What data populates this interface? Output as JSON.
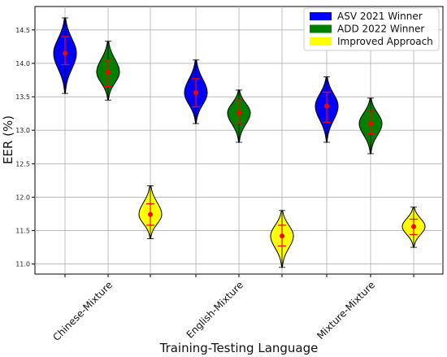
{
  "chart_data": {
    "type": "violin",
    "xlabel": "Training-Testing Language",
    "ylabel": "EER (%)",
    "ylim": [
      10.85,
      14.85
    ],
    "yticks": [
      11.0,
      11.5,
      12.0,
      12.5,
      13.0,
      13.5,
      14.0,
      14.5
    ],
    "ytick_labels": [
      "11.0",
      "11.5",
      "12.0",
      "12.5",
      "13.0",
      "13.5",
      "14.0",
      "14.5"
    ],
    "categories": [
      "Chinese-Mixture",
      "English-Mixture",
      "Mixture-Mixture"
    ],
    "grid": true,
    "legend_position": "top-right",
    "series": [
      {
        "name": "ASV 2021 Winner",
        "color": "#0000ff",
        "violins": [
          {
            "min": 13.55,
            "max": 14.68,
            "mean": 14.15,
            "err_low": 13.98,
            "err_high": 14.4
          },
          {
            "min": 13.1,
            "max": 14.05,
            "mean": 13.56,
            "err_low": 13.35,
            "err_high": 13.77
          },
          {
            "min": 12.82,
            "max": 13.8,
            "mean": 13.36,
            "err_low": 13.12,
            "err_high": 13.57
          }
        ]
      },
      {
        "name": "ADD 2022 Winner",
        "color": "#008000",
        "violins": [
          {
            "min": 13.45,
            "max": 14.33,
            "mean": 13.87,
            "err_low": 13.65,
            "err_high": 14.05
          },
          {
            "min": 12.82,
            "max": 13.6,
            "mean": 13.26,
            "err_low": 13.1,
            "err_high": 13.45
          },
          {
            "min": 12.65,
            "max": 13.48,
            "mean": 13.1,
            "err_low": 12.95,
            "err_high": 13.28
          }
        ]
      },
      {
        "name": "Improved Approach",
        "color": "#ffff00",
        "violins": [
          {
            "min": 11.38,
            "max": 12.17,
            "mean": 11.74,
            "err_low": 11.58,
            "err_high": 11.9
          },
          {
            "min": 10.95,
            "max": 11.8,
            "mean": 11.42,
            "err_low": 11.27,
            "err_high": 11.58
          },
          {
            "min": 11.25,
            "max": 11.85,
            "mean": 11.56,
            "err_low": 11.44,
            "err_high": 11.67
          }
        ]
      }
    ]
  }
}
